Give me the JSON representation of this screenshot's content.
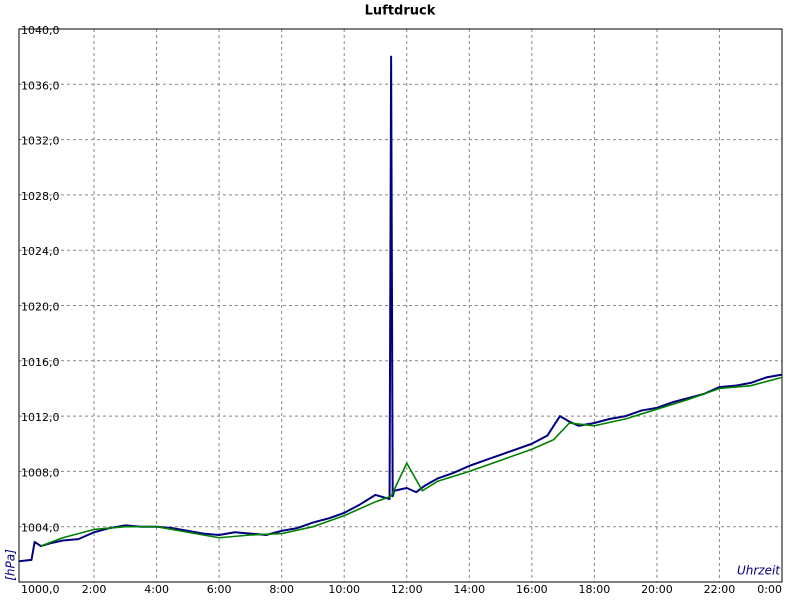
{
  "chart_data": {
    "type": "line",
    "title": "Luftdruck",
    "y_label": "[hPa]",
    "x_label": "Uhrzeit",
    "xlim": [
      -0.4,
      24
    ],
    "ylim": [
      1000,
      1040
    ],
    "xticks": [
      {
        "value": 2,
        "label": "2:00"
      },
      {
        "value": 4,
        "label": "4:00"
      },
      {
        "value": 6,
        "label": "6:00"
      },
      {
        "value": 8,
        "label": "8:00"
      },
      {
        "value": 10,
        "label": "10:00"
      },
      {
        "value": 12,
        "label": "12:00"
      },
      {
        "value": 14,
        "label": "14:00"
      },
      {
        "value": 16,
        "label": "16:00"
      },
      {
        "value": 18,
        "label": "18:00"
      },
      {
        "value": 20,
        "label": "20:00"
      },
      {
        "value": 22,
        "label": "22:00"
      },
      {
        "value": 24,
        "label": "0:00"
      }
    ],
    "yticks": [
      {
        "value": 1000,
        "label": "1000,0"
      },
      {
        "value": 1004,
        "label": "1004,0"
      },
      {
        "value": 1008,
        "label": "1008,0"
      },
      {
        "value": 1012,
        "label": "1012,0"
      },
      {
        "value": 1016,
        "label": "1016,0"
      },
      {
        "value": 1020,
        "label": "1020,0"
      },
      {
        "value": 1024,
        "label": "1024,0"
      },
      {
        "value": 1028,
        "label": "1028,0"
      },
      {
        "value": 1032,
        "label": "1032,0"
      },
      {
        "value": 1036,
        "label": "1036,0"
      },
      {
        "value": 1040,
        "label": "1040,0"
      }
    ],
    "grid": true,
    "series": [
      {
        "color": "#000080",
        "x": [
          -0.4,
          0.0,
          0.1,
          0.3,
          0.6,
          1.0,
          1.5,
          2.0,
          2.5,
          3.0,
          3.5,
          4.0,
          4.5,
          5.0,
          5.5,
          6.0,
          6.5,
          7.0,
          7.5,
          8.0,
          8.5,
          9.0,
          9.5,
          10.0,
          10.5,
          11.0,
          11.3,
          11.45,
          11.5,
          11.55,
          11.6,
          12.0,
          12.3,
          12.6,
          13.0,
          13.5,
          14.0,
          14.5,
          15.0,
          15.5,
          16.0,
          16.5,
          16.9,
          17.2,
          17.5,
          18.0,
          18.5,
          19.0,
          19.5,
          20.0,
          20.5,
          21.0,
          21.5,
          22.0,
          22.5,
          23.0,
          23.5,
          24.0
        ],
        "values": [
          1001.5,
          1001.6,
          1002.9,
          1002.6,
          1002.8,
          1003.0,
          1003.1,
          1003.6,
          1003.9,
          1004.1,
          1004.0,
          1004.0,
          1003.9,
          1003.7,
          1003.5,
          1003.4,
          1003.6,
          1003.5,
          1003.4,
          1003.7,
          1003.9,
          1004.3,
          1004.6,
          1005.0,
          1005.6,
          1006.3,
          1006.1,
          1006.0,
          1038.0,
          1006.2,
          1006.6,
          1006.8,
          1006.5,
          1007.0,
          1007.5,
          1007.9,
          1008.4,
          1008.8,
          1009.2,
          1009.6,
          1010.0,
          1010.6,
          1012.0,
          1011.6,
          1011.3,
          1011.5,
          1011.8,
          1012.0,
          1012.4,
          1012.6,
          1013.0,
          1013.3,
          1013.6,
          1014.1,
          1014.2,
          1014.4,
          1014.8,
          1015.0
        ]
      },
      {
        "color": "#008000",
        "x": [
          0.3,
          1.0,
          2.0,
          3.0,
          4.0,
          5.0,
          6.0,
          7.0,
          8.0,
          9.0,
          10.0,
          11.0,
          11.5,
          12.0,
          12.5,
          13.0,
          14.0,
          15.0,
          16.0,
          16.7,
          17.2,
          18.0,
          19.0,
          20.0,
          21.0,
          22.0,
          23.0,
          24.0
        ],
        "values": [
          1002.6,
          1003.2,
          1003.8,
          1004.0,
          1004.0,
          1003.6,
          1003.2,
          1003.4,
          1003.5,
          1004.0,
          1004.8,
          1005.8,
          1006.2,
          1008.6,
          1006.6,
          1007.3,
          1008.0,
          1008.8,
          1009.6,
          1010.3,
          1011.5,
          1011.3,
          1011.8,
          1012.5,
          1013.2,
          1014.0,
          1014.2,
          1014.8
        ]
      }
    ]
  }
}
